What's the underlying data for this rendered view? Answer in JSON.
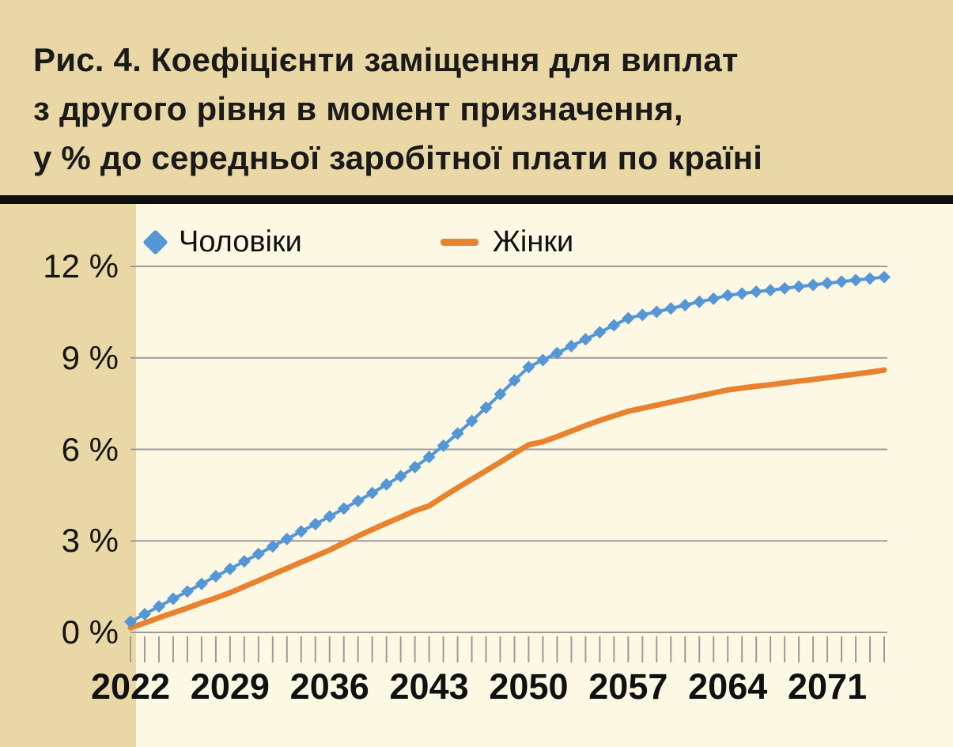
{
  "figure": {
    "label": "Рис. 4",
    "title_lines": [
      "Рис. 4. Коефіцієнти заміщення для виплат",
      "з другого рівня в момент призначення,",
      "у % до середньої заробітної плати по країні"
    ],
    "title_full": "Рис. 4. Коефіцієнти заміщення для виплат з другого рівня в момент призначення, у % до середньої заробітної плати по країні"
  },
  "legend": {
    "items": [
      {
        "label": "Чоловіки",
        "marker": "diamond",
        "color": "#5596d6"
      },
      {
        "label": "Жінки",
        "marker": "line",
        "color": "#e8822e"
      }
    ],
    "position": "top-left-inside"
  },
  "chart_data": {
    "type": "line",
    "title": "Коефіцієнти заміщення для виплат з другого рівня в момент призначення, у % до середньої заробітної плати по країні",
    "xlabel": "",
    "ylabel": "",
    "grid": "horizontal",
    "ylim": [
      0,
      12
    ],
    "x": [
      2022,
      2023,
      2024,
      2025,
      2026,
      2027,
      2028,
      2029,
      2030,
      2031,
      2032,
      2033,
      2034,
      2035,
      2036,
      2037,
      2038,
      2039,
      2040,
      2041,
      2042,
      2043,
      2044,
      2045,
      2046,
      2047,
      2048,
      2049,
      2050,
      2051,
      2052,
      2053,
      2054,
      2055,
      2056,
      2057,
      2058,
      2059,
      2060,
      2061,
      2062,
      2063,
      2064,
      2065,
      2066,
      2067,
      2068,
      2069,
      2070,
      2071,
      2072,
      2073,
      2074,
      2075
    ],
    "series": [
      {
        "name": "Чоловіки",
        "color": "#5596d6",
        "marker": "diamond",
        "values": [
          0.35,
          0.6,
          0.85,
          1.1,
          1.34,
          1.59,
          1.84,
          2.08,
          2.33,
          2.57,
          2.82,
          3.06,
          3.31,
          3.55,
          3.8,
          4.06,
          4.31,
          4.57,
          4.85,
          5.12,
          5.42,
          5.75,
          6.12,
          6.52,
          6.93,
          7.37,
          7.81,
          8.26,
          8.7,
          8.93,
          9.16,
          9.39,
          9.61,
          9.84,
          10.07,
          10.3,
          10.41,
          10.51,
          10.62,
          10.73,
          10.84,
          10.94,
          11.05,
          11.11,
          11.17,
          11.22,
          11.28,
          11.34,
          11.39,
          11.45,
          11.5,
          11.55,
          11.6,
          11.65
        ]
      },
      {
        "name": "Жінки",
        "color": "#e8822e",
        "marker": "none",
        "values": [
          0.15,
          0.31,
          0.48,
          0.64,
          0.8,
          0.97,
          1.13,
          1.3,
          1.5,
          1.7,
          1.9,
          2.1,
          2.3,
          2.5,
          2.7,
          2.93,
          3.16,
          3.37,
          3.58,
          3.78,
          3.99,
          4.15,
          4.45,
          4.74,
          5.02,
          5.3,
          5.58,
          5.87,
          6.15,
          6.25,
          6.42,
          6.6,
          6.78,
          6.95,
          7.1,
          7.25,
          7.35,
          7.45,
          7.55,
          7.65,
          7.75,
          7.85,
          7.95,
          8.01,
          8.07,
          8.12,
          8.18,
          8.24,
          8.29,
          8.35,
          8.41,
          8.47,
          8.53,
          8.6
        ]
      }
    ],
    "yticks": {
      "values": [
        0,
        3,
        6,
        9,
        12
      ],
      "labels": [
        "0 %",
        "3 %",
        "6 %",
        "9 %",
        "12 %"
      ]
    },
    "xticks": {
      "values": [
        2022,
        2029,
        2036,
        2043,
        2050,
        2057,
        2064,
        2071
      ],
      "labels": [
        "2022",
        "2029",
        "2036",
        "2043",
        "2050",
        "2057",
        "2064",
        "2071"
      ]
    }
  },
  "colors": {
    "page_bg": "#e9d8a6",
    "plot_bg": "#fcf8e3",
    "divider": "#0d0d0d",
    "grid": "#9b9b9b",
    "tick": "#9b9b9b",
    "text": "#1a1a1a",
    "series_men": "#5596d6",
    "series_women": "#e8822e"
  }
}
